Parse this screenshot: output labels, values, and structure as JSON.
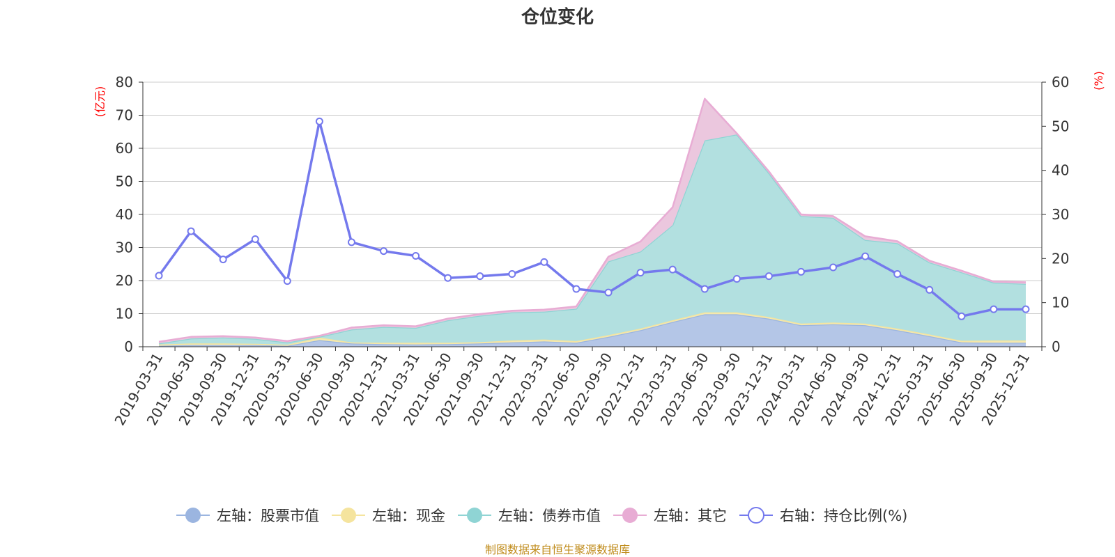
{
  "chart_data": {
    "type": "area",
    "title": "仓位变化",
    "left_unit": "(亿元)",
    "right_unit": "(%)",
    "categories": [
      "2019-03-31",
      "2019-06-30",
      "2019-09-30",
      "2019-12-31",
      "2020-03-31",
      "2020-06-30",
      "2020-09-30",
      "2020-12-31",
      "2021-03-31",
      "2021-06-30",
      "2021-09-30",
      "2021-12-31",
      "2022-03-31",
      "2022-06-30",
      "2022-09-30",
      "2022-12-31",
      "2023-03-31",
      "2023-06-30",
      "2023-09-30",
      "2023-12-31",
      "2024-03-31",
      "2024-06-30",
      "2024-09-30",
      "2024-12-31",
      "2025-03-31",
      "2025-06-30",
      "2025-09-30",
      "2025-12-31"
    ],
    "left_ylim": [
      0,
      80
    ],
    "left_ticks": [
      0,
      10,
      20,
      30,
      40,
      50,
      60,
      70,
      80
    ],
    "right_ylim": [
      0,
      60
    ],
    "right_ticks": [
      0,
      10,
      20,
      30,
      40,
      50,
      60
    ],
    "grid": true,
    "legend_position": "bottom",
    "stacked_series": [
      {
        "name": "左轴：股票市值",
        "axis": "left",
        "color": "#9bb5e0",
        "fill": "#b4c6e7",
        "values": [
          0.3,
          0.5,
          0.5,
          0.5,
          0.3,
          2.0,
          1.0,
          0.8,
          0.7,
          0.8,
          1.0,
          1.3,
          1.6,
          1.2,
          3.0,
          5.0,
          7.5,
          9.8,
          9.8,
          8.5,
          6.5,
          6.8,
          6.5,
          5.0,
          3.2,
          1.3,
          1.2,
          1.2
        ]
      },
      {
        "name": "左轴：现金",
        "axis": "left",
        "color": "#f5e49e",
        "fill": "#f5e9b0",
        "values": [
          0.4,
          0.5,
          0.5,
          0.4,
          0.3,
          0.8,
          0.3,
          0.4,
          0.5,
          0.4,
          0.4,
          0.6,
          0.6,
          0.5,
          0.5,
          0.5,
          0.5,
          0.6,
          0.6,
          0.5,
          0.5,
          0.5,
          0.5,
          0.5,
          0.5,
          0.5,
          0.7,
          0.7
        ]
      },
      {
        "name": "左轴：债券市值",
        "axis": "left",
        "color": "#8fd4d4",
        "fill": "#b2e0e0",
        "values": [
          0.3,
          1.5,
          1.8,
          1.5,
          0.7,
          0.2,
          3.9,
          4.8,
          4.5,
          6.8,
          8.0,
          8.5,
          8.4,
          9.8,
          22.3,
          23.3,
          28.8,
          52.0,
          53.8,
          43.5,
          32.5,
          31.7,
          25.3,
          25.8,
          21.8,
          20.7,
          17.5,
          17.1
        ]
      },
      {
        "name": "左轴：其它",
        "axis": "left",
        "color": "#e8acd4",
        "fill": "#ebc7de",
        "values": [
          0.5,
          0.5,
          0.4,
          0.4,
          0.4,
          0.3,
          0.6,
          0.5,
          0.5,
          0.5,
          0.5,
          0.5,
          0.6,
          0.7,
          1.4,
          3.0,
          5.4,
          12.6,
          0.3,
          0.5,
          0.5,
          0.5,
          1.1,
          0.6,
          0.5,
          0.5,
          0.3,
          0.5
        ]
      }
    ],
    "line_series": {
      "name": "右轴：持仓比例(%)",
      "axis": "right",
      "color": "#7479ed",
      "values": [
        16.1,
        26.2,
        19.8,
        24.4,
        14.9,
        51.1,
        23.7,
        21.7,
        20.6,
        15.6,
        16.0,
        16.5,
        19.2,
        13.1,
        12.3,
        16.8,
        17.5,
        13.1,
        15.4,
        16.0,
        17.0,
        18.0,
        20.5,
        16.5,
        12.9,
        6.9,
        8.5,
        8.5
      ]
    }
  },
  "source": "制图数据来自恒生聚源数据库"
}
